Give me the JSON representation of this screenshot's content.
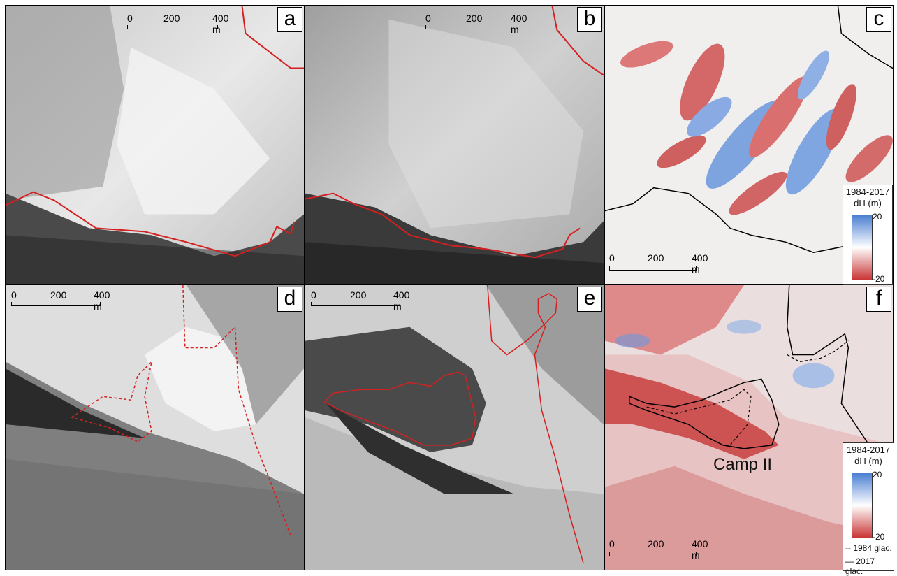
{
  "panels": {
    "a": {
      "label": "a"
    },
    "b": {
      "label": "b"
    },
    "c": {
      "label": "c"
    },
    "d": {
      "label": "d"
    },
    "e": {
      "label": "e"
    },
    "f": {
      "label": "f"
    }
  },
  "scalebar": {
    "t0": "0",
    "t1": "200",
    "t2": "400 m"
  },
  "legend": {
    "years": "1984-2017",
    "unit": "dH (m)",
    "max": "20",
    "min": "-20"
  },
  "legend_f": {
    "glac1984": "-- 1984 glac.",
    "glac2017": "— 2017 glac."
  },
  "camp_label": "Camp II",
  "colors": {
    "outline": "#d42020",
    "dH_pos": "#4a7fd1",
    "dH_neg": "#c93535"
  }
}
